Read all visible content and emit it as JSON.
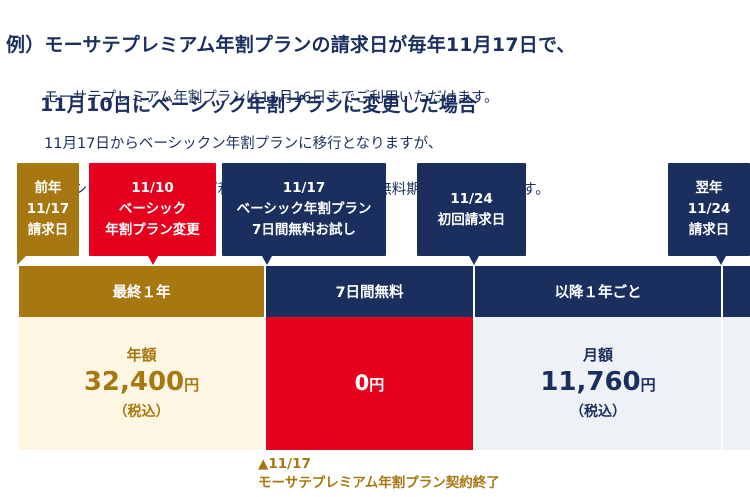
{
  "title": {
    "line1": "例）モーサテプレミアム年割プランの請求日が毎年11月17日で、",
    "line2": "11月10日にベーシック年割プランに変更した場合"
  },
  "description": [
    "モーサテプレミアム年割プランは11月16日までご利用いただけます。",
    "11月17日からベーシックン年割プランに移行となりますが、",
    "ベーシック年割プランのご利用が初めてのお客様は無料期間が付与されます。"
  ],
  "callouts": [
    {
      "text": "前年\n11/17\n請求日",
      "color": "#a77712"
    },
    {
      "text": "11/10\nベーシック\n年割プラン変更",
      "color": "#e6001d"
    },
    {
      "text": "11/17\nベーシック年割プラン\n7日間無料お試し",
      "color": "#1b2f5e"
    },
    {
      "text": "11/24\n初回請求日",
      "color": "#1b2f5e"
    },
    {
      "text": "翌年\n11/24\n請求日",
      "color": "#1b2f5e"
    }
  ],
  "periods": [
    {
      "header": "最終１年",
      "label": "年額",
      "amount": "32,400",
      "unit": "円",
      "tax": "（税込）",
      "header_color": "#a77712",
      "body_color": "#fdf6e3",
      "text_color": "#a77712"
    },
    {
      "header": "7日間無料",
      "label": "",
      "amount": "0",
      "unit": "円",
      "tax": "",
      "header_color": "#1b2f5e",
      "body_color": "#e6001d",
      "text_color": "#ffffff"
    },
    {
      "header": "以降１年ごと",
      "label": "月額",
      "amount": "11,760",
      "unit": "円",
      "tax": "（税込）",
      "header_color": "#1b2f5e",
      "body_color": "#eef2f7",
      "text_color": "#1b2f5e"
    }
  ],
  "contract_end_note": "▲11/17\nモーサテプレミアム年割プラン契約終了"
}
